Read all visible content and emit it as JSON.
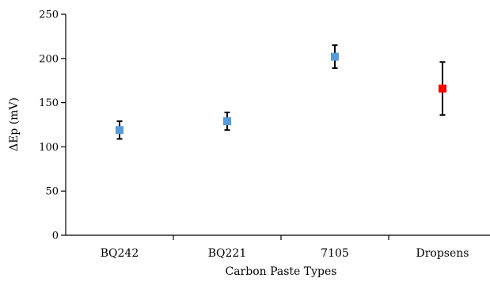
{
  "chart_data": {
    "type": "scatter",
    "title": "",
    "xlabel": "Carbon Paste Types",
    "ylabel": "ΔEp (mV)",
    "ylim": [
      0,
      250
    ],
    "yticks": [
      "0",
      "50",
      "100",
      "150",
      "200",
      "250"
    ],
    "categories": [
      "BQ242",
      "BQ221",
      "7105",
      "Dropsens"
    ],
    "values": [
      119,
      129,
      202,
      166
    ],
    "errors_plus": [
      10,
      10,
      13,
      30
    ],
    "errors_minus": [
      10,
      10,
      13,
      30
    ],
    "point_colors": [
      "#5b9bd5",
      "#5b9bd5",
      "#5b9bd5",
      "#ff0000"
    ],
    "error_bar_color": "#000000",
    "grid": false,
    "legend": "none"
  }
}
